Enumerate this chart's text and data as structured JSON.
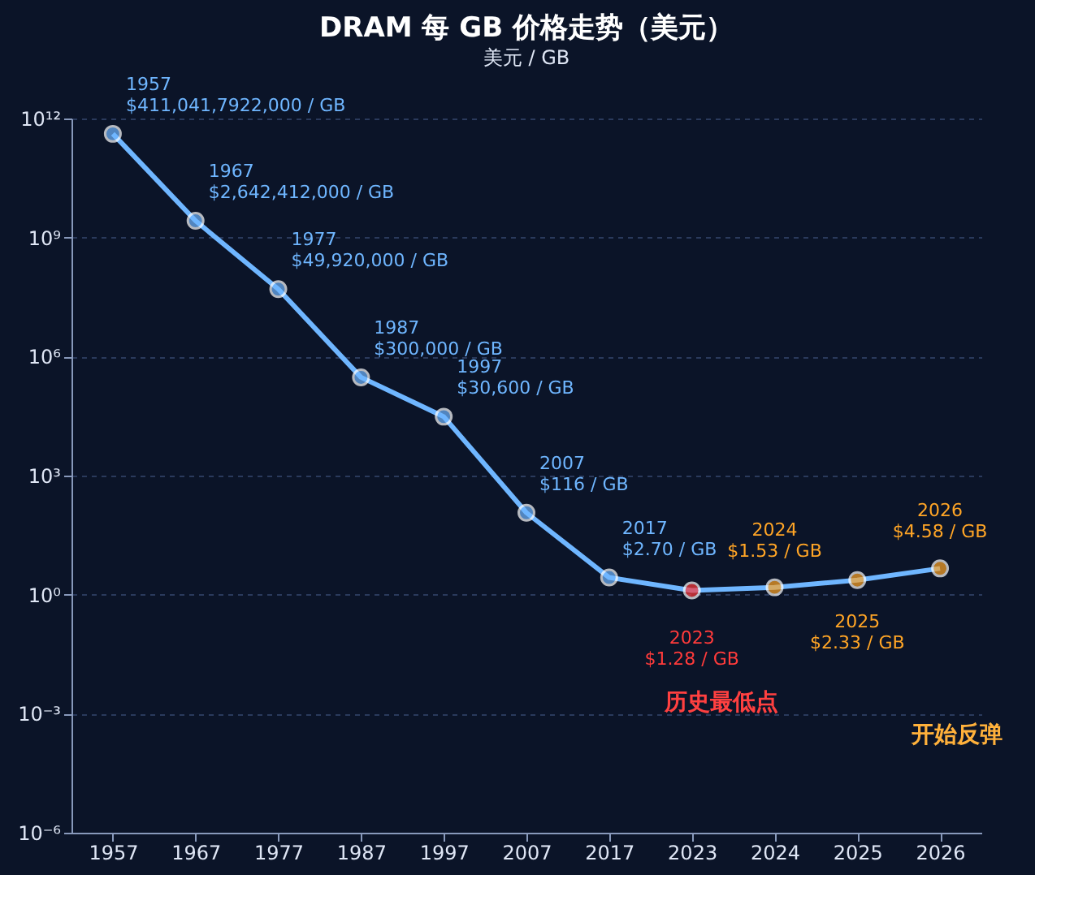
{
  "chart_data": {
    "type": "line",
    "title": "DRAM 每 GB 价格走势（美元）",
    "ylabel": "美元 / GB",
    "categories": [
      "1957",
      "1967",
      "1977",
      "1987",
      "1997",
      "2007",
      "2017",
      "2023",
      "2024",
      "2025",
      "2026"
    ],
    "series": [
      {
        "color": "#6fb6ff",
        "colors": [
          "#6fb6ff",
          "#6fb6ff",
          "#6fb6ff",
          "#6fb6ff",
          "#6fb6ff",
          "#6fb6ff",
          "#6fb6ff",
          "#ff3b3b",
          "#ffa526",
          "#ffa526",
          "#ffa526"
        ],
        "values": [
          411041792000,
          2642412000,
          49920000,
          300000,
          30600,
          116,
          2.7,
          1.28,
          1.53,
          2.33,
          4.58
        ],
        "value_labels": [
          "$411,041,7922,000 / GB",
          "$2,642,412,000 / GB",
          "$49,920,000 / GB",
          "$300,000 / GB",
          "$30,600 / GB",
          "$116 / GB",
          "$2.70 / GB",
          "$1.28 / GB",
          "$1.53 / GB",
          "$2.33 / GB",
          "$4.58 / GB"
        ]
      }
    ],
    "log": "y",
    "ylim": [
      1e-06,
      1000000000000.0
    ],
    "yticks": [
      {
        "value": 1e-06,
        "label": "10⁻⁶"
      },
      {
        "value": 0.001,
        "label": "10⁻³"
      },
      {
        "value": 1,
        "label": "10⁰"
      },
      {
        "value": 1000.0,
        "label": "10³"
      },
      {
        "value": 1000000.0,
        "label": "10⁶"
      },
      {
        "value": 1000000000.0,
        "label": "10⁹"
      },
      {
        "value": 1000000000000.0,
        "label": "10¹²"
      }
    ],
    "grid": "y",
    "marker": "circle",
    "line_style": "solid",
    "annotations": [
      "历史最低点",
      "开始反弹"
    ]
  }
}
